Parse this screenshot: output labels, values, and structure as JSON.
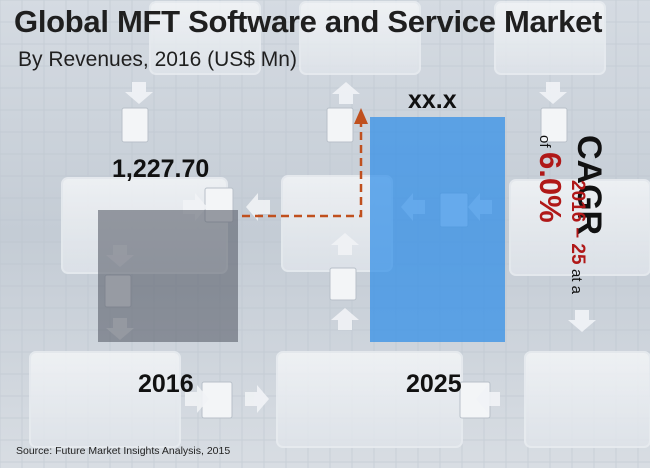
{
  "title": "Global MFT Software and Service Market",
  "subtitle": "By Revenues, 2016 (US$ Mn)",
  "source": "Source: Future Market Insights Analysis, 2015",
  "cagr": {
    "label": "CAGR",
    "period": "2016 – 25",
    "at": "at a",
    "of": "of",
    "rate": "6.0%"
  },
  "colors": {
    "bar_2016": "#5a5f6b",
    "bar_2025": "#2f8ee8",
    "arrow": "#c0501e",
    "cagr_accent": "#b01818",
    "background": "#c9d0d8"
  },
  "chart_data": {
    "type": "bar",
    "categories": [
      "2016",
      "2025"
    ],
    "values": [
      1227.7,
      null
    ],
    "value_labels": [
      "1,227.70",
      "xx.x"
    ],
    "title": "Global MFT Software and Service Market",
    "subtitle": "By Revenues, 2016 (US$ Mn)",
    "xlabel": "",
    "ylabel": "",
    "grid": false,
    "legend": "none",
    "annotations": [
      "CAGR 2016 – 25 at a of 6.0%"
    ]
  }
}
